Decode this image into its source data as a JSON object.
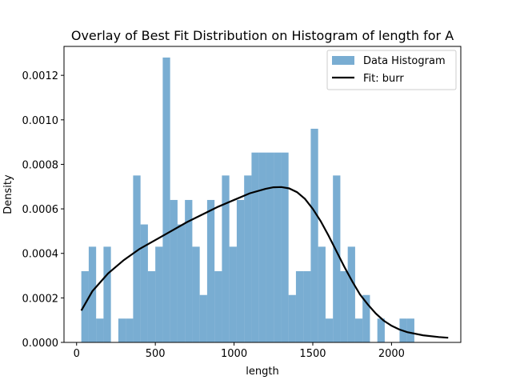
{
  "chart_data": {
    "type": "bar",
    "title": "Overlay of Best Fit Distribution on Histogram of length for A",
    "xlabel": "length",
    "ylabel": "Density",
    "xlim": [
      -80,
      2440
    ],
    "ylim": [
      0,
      0.00133
    ],
    "x_ticks": [
      0,
      500,
      1000,
      1500,
      2000
    ],
    "x_tick_labels": [
      "0",
      "500",
      "1000",
      "1500",
      "2000"
    ],
    "y_ticks": [
      0,
      0.0002,
      0.0004,
      0.0006,
      0.0008,
      0.001,
      0.0012
    ],
    "y_tick_labels": [
      "0.0000",
      "0.0002",
      "0.0004",
      "0.0006",
      "0.0008",
      "0.0010",
      "0.0012"
    ],
    "grid": false,
    "legend_position": "top-right",
    "colors": {
      "histogram": "#1f77b4",
      "fit": "#000000"
    },
    "series": [
      {
        "name": "Data Histogram",
        "kind": "histogram",
        "bin_start": 30,
        "bin_width": 47,
        "values": [
          0.00032,
          0.00043,
          0.000107,
          0.00043,
          0,
          0.000107,
          0.000107,
          0.00075,
          0.00053,
          0.00032,
          0.00043,
          0.00128,
          0.00064,
          0.00053,
          0.00064,
          0.00043,
          0.000213,
          0.00064,
          0.00032,
          0.00075,
          0.00043,
          0.00064,
          0.00075,
          0.000853,
          0.000853,
          0.000853,
          0.000853,
          0.000853,
          0.000213,
          0.00032,
          0.00032,
          0.00096,
          0.00043,
          0.000107,
          0.00075,
          0.00032,
          0.00043,
          0.000107,
          0.000213,
          0,
          0.000107,
          0,
          0,
          0.000107,
          0.000107
        ]
      },
      {
        "name": "Fit: burr",
        "kind": "line",
        "x": [
          30,
          100,
          200,
          300,
          400,
          500,
          600,
          700,
          800,
          900,
          1000,
          1100,
          1200,
          1250,
          1300,
          1350,
          1400,
          1450,
          1500,
          1550,
          1600,
          1650,
          1700,
          1750,
          1800,
          1850,
          1900,
          1950,
          2000,
          2050,
          2100,
          2200,
          2300,
          2360
        ],
        "y": [
          0.000143,
          0.00023,
          0.00031,
          0.00037,
          0.00042,
          0.00046,
          0.0005,
          0.00054,
          0.000575,
          0.00061,
          0.00064,
          0.00067,
          0.00069,
          0.000697,
          0.000698,
          0.000692,
          0.000675,
          0.000645,
          0.0006,
          0.000545,
          0.00048,
          0.00041,
          0.00034,
          0.000275,
          0.000215,
          0.00017,
          0.00013,
          9.8e-05,
          7.5e-05,
          5.8e-05,
          4.6e-05,
          3.2e-05,
          2.4e-05,
          2.1e-05
        ]
      }
    ]
  }
}
